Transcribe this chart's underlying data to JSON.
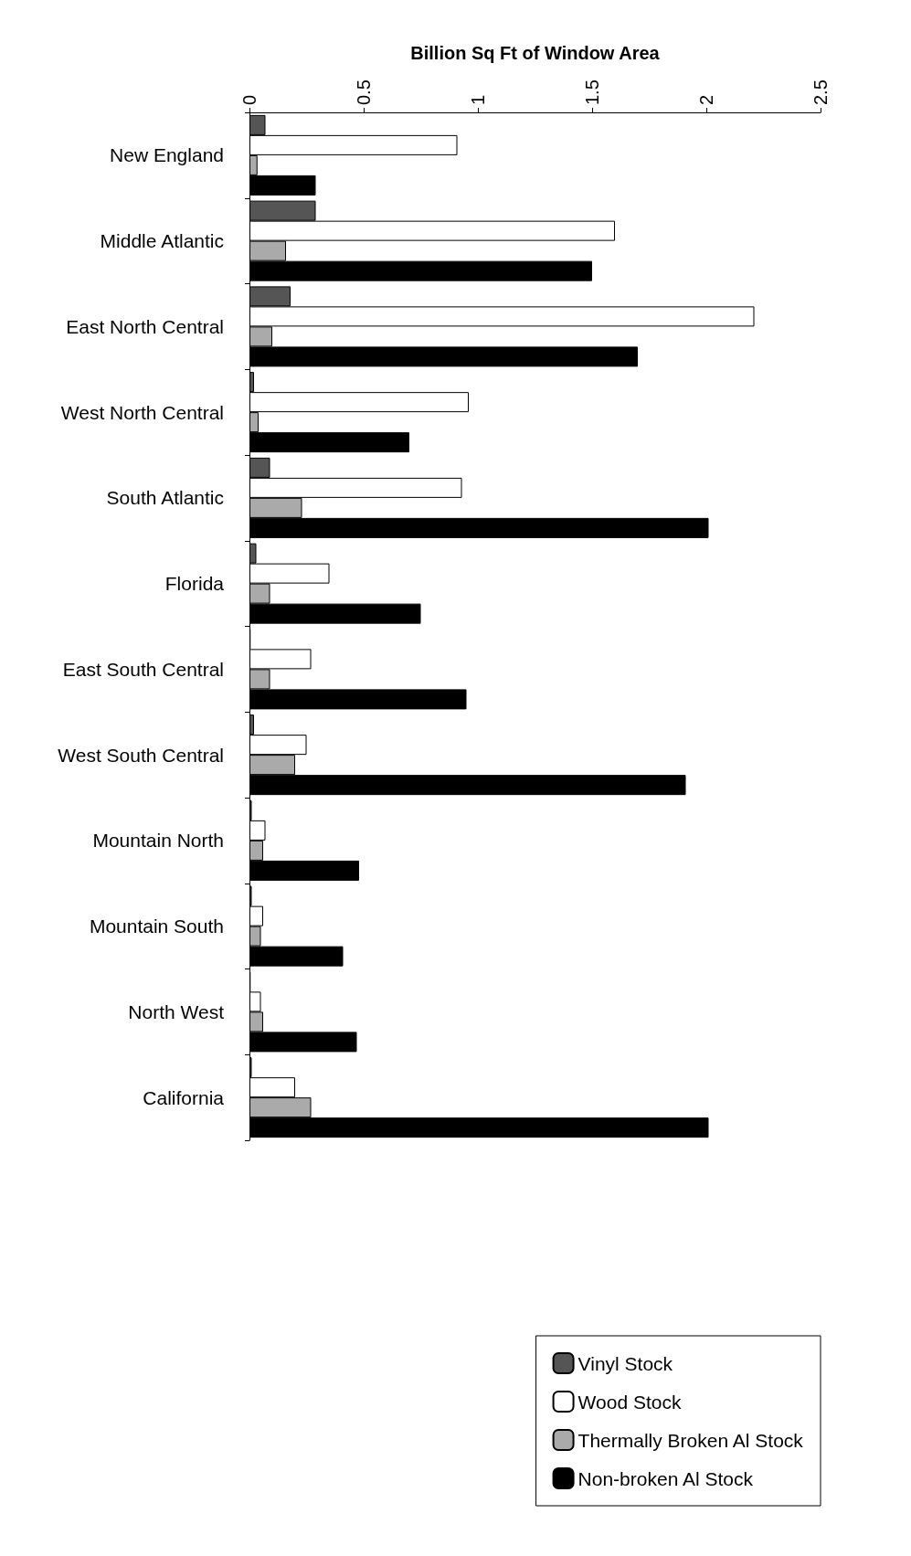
{
  "chart_data": {
    "type": "bar",
    "orientation": "horizontal",
    "xlabel": "Billion Sq Ft of Window Area",
    "categories": [
      "New England",
      "Middle Atlantic",
      "East North Central",
      "West North Central",
      "South Atlantic",
      "Florida",
      "East South Central",
      "West South Central",
      "Mountain North",
      "Mountain South",
      "North West",
      "California"
    ],
    "series": [
      {
        "name": "Vinyl Stock",
        "color": "#555555",
        "values": [
          0.07,
          0.29,
          0.18,
          0.02,
          0.09,
          0.03,
          0.005,
          0.02,
          0.01,
          0.01,
          0.005,
          0.01
        ]
      },
      {
        "name": "Wood Stock",
        "color": "#ffffff",
        "values": [
          0.91,
          1.6,
          2.21,
          0.96,
          0.93,
          0.35,
          0.27,
          0.25,
          0.07,
          0.06,
          0.05,
          0.2
        ]
      },
      {
        "name": "Thermally Broken Al Stock",
        "color": "#aaaaaa",
        "values": [
          0.035,
          0.16,
          0.1,
          0.04,
          0.23,
          0.09,
          0.09,
          0.2,
          0.06,
          0.05,
          0.06,
          0.27
        ]
      },
      {
        "name": "Non-broken Al Stock",
        "color": "#000000",
        "values": [
          0.29,
          1.5,
          1.7,
          0.7,
          2.01,
          0.75,
          0.95,
          1.91,
          0.48,
          0.41,
          0.47,
          2.01
        ]
      }
    ],
    "xlim": [
      0,
      2.5
    ],
    "xticks": [
      0,
      0.5,
      1,
      1.5,
      2,
      2.5
    ],
    "grid": false,
    "legend": "bottom right"
  }
}
